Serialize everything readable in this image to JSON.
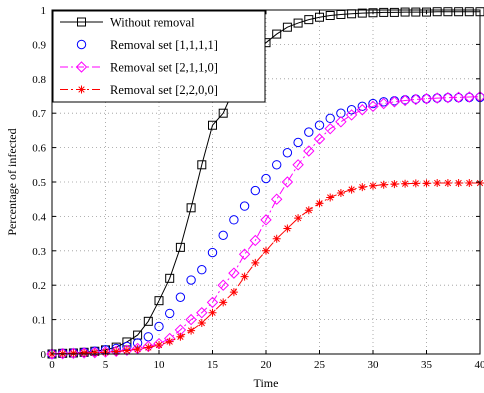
{
  "chart_data": {
    "type": "line",
    "xlabel": "Time",
    "ylabel": "Percentage of infected",
    "xlim": [
      0,
      40
    ],
    "ylim": [
      0,
      1
    ],
    "xticks": [
      "0",
      "5",
      "10",
      "15",
      "20",
      "25",
      "30",
      "35",
      "40"
    ],
    "yticks": [
      "0",
      "0.1",
      "0.2",
      "0.3",
      "0.4",
      "0.5",
      "0.6",
      "0.7",
      "0.8",
      "0.9",
      "1"
    ],
    "grid": true,
    "legend_position": "top-left",
    "x": [
      0,
      1,
      2,
      3,
      4,
      5,
      6,
      7,
      8,
      9,
      10,
      11,
      12,
      13,
      14,
      15,
      16,
      17,
      18,
      19,
      20,
      21,
      22,
      23,
      24,
      25,
      26,
      27,
      28,
      29,
      30,
      31,
      32,
      33,
      34,
      35,
      36,
      37,
      38,
      39,
      40
    ],
    "series": [
      {
        "name": "Without removal",
        "color": "#000000",
        "marker": "square",
        "line": "solid",
        "values": [
          0.0,
          0.002,
          0.003,
          0.005,
          0.008,
          0.012,
          0.02,
          0.035,
          0.055,
          0.095,
          0.155,
          0.22,
          0.31,
          0.425,
          0.55,
          0.665,
          0.7,
          0.77,
          0.83,
          0.875,
          0.905,
          0.93,
          0.95,
          0.962,
          0.972,
          0.979,
          0.984,
          0.987,
          0.989,
          0.991,
          0.992,
          0.993,
          0.993,
          0.994,
          0.994,
          0.994,
          0.995,
          0.995,
          0.995,
          0.995,
          0.995
        ]
      },
      {
        "name": "Removal set [1,1,1,1]",
        "color": "#0000ff",
        "marker": "circle",
        "line": "none",
        "values": [
          0.0,
          0.002,
          0.003,
          0.005,
          0.008,
          0.012,
          0.016,
          0.022,
          0.032,
          0.05,
          0.08,
          0.118,
          0.165,
          0.215,
          0.245,
          0.295,
          0.345,
          0.39,
          0.43,
          0.475,
          0.51,
          0.55,
          0.585,
          0.615,
          0.645,
          0.665,
          0.685,
          0.7,
          0.71,
          0.72,
          0.728,
          0.733,
          0.736,
          0.739,
          0.741,
          0.742,
          0.744,
          0.745,
          0.745,
          0.746,
          0.746
        ]
      },
      {
        "name": "Removal set [2,1,1,0]",
        "color": "#ff00ff",
        "marker": "diamond",
        "line": "dashdot",
        "values": [
          0.0,
          0.001,
          0.002,
          0.003,
          0.004,
          0.006,
          0.008,
          0.011,
          0.016,
          0.022,
          0.03,
          0.045,
          0.07,
          0.1,
          0.12,
          0.15,
          0.2,
          0.235,
          0.29,
          0.33,
          0.39,
          0.45,
          0.5,
          0.55,
          0.59,
          0.625,
          0.655,
          0.675,
          0.695,
          0.71,
          0.72,
          0.728,
          0.733,
          0.737,
          0.74,
          0.742,
          0.744,
          0.745,
          0.746,
          0.747,
          0.748
        ]
      },
      {
        "name": "Removal set [2,2,0,0]",
        "color": "#ff0000",
        "marker": "star",
        "line": "dashdot",
        "values": [
          0.0,
          0.001,
          0.002,
          0.003,
          0.004,
          0.005,
          0.007,
          0.01,
          0.014,
          0.019,
          0.026,
          0.036,
          0.05,
          0.068,
          0.09,
          0.12,
          0.15,
          0.18,
          0.225,
          0.265,
          0.3,
          0.335,
          0.365,
          0.395,
          0.418,
          0.438,
          0.455,
          0.468,
          0.478,
          0.485,
          0.489,
          0.492,
          0.494,
          0.495,
          0.496,
          0.496,
          0.497,
          0.497,
          0.497,
          0.497,
          0.497
        ]
      }
    ]
  }
}
